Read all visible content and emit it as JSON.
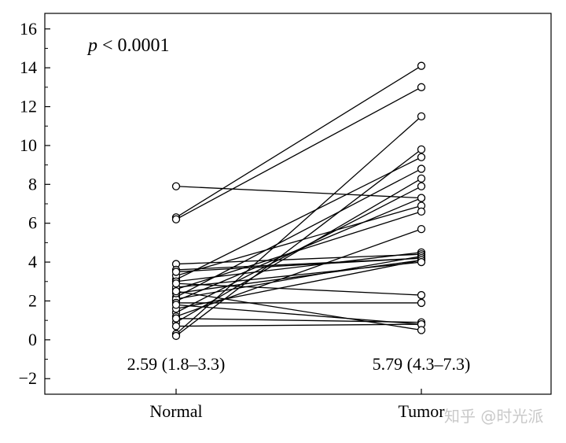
{
  "chart_data": {
    "type": "line",
    "title": "",
    "xlabel": "",
    "ylabel": "",
    "categories": [
      "Normal",
      "Tumor"
    ],
    "ylim": [
      -2.8,
      16.8
    ],
    "yticks": [
      -2,
      0,
      2,
      4,
      6,
      8,
      10,
      12,
      14,
      16
    ],
    "annotation": {
      "italic": "p",
      "rest": " < 0.0001"
    },
    "summaries": [
      {
        "category": "Normal",
        "text": "2.59 (1.8–3.3)"
      },
      {
        "category": "Tumor",
        "text": "5.79 (4.3–7.3)"
      }
    ],
    "grid": false,
    "legend": "none",
    "pairs": [
      [
        6.3,
        14.1
      ],
      [
        6.2,
        13.0
      ],
      [
        7.9,
        7.3
      ],
      [
        0.3,
        11.5
      ],
      [
        0.2,
        9.8
      ],
      [
        3.1,
        9.4
      ],
      [
        2.2,
        8.8
      ],
      [
        0.9,
        8.3
      ],
      [
        1.4,
        7.9
      ],
      [
        2.0,
        7.3
      ],
      [
        3.3,
        6.9
      ],
      [
        2.6,
        6.6
      ],
      [
        1.2,
        5.7
      ],
      [
        3.0,
        4.5
      ],
      [
        3.9,
        4.4
      ],
      [
        2.1,
        4.3
      ],
      [
        3.6,
        4.2
      ],
      [
        3.5,
        4.2
      ],
      [
        1.6,
        4.1
      ],
      [
        2.4,
        4.1
      ],
      [
        2.7,
        4.0
      ],
      [
        2.9,
        2.3
      ],
      [
        1.9,
        1.9
      ],
      [
        1.1,
        0.9
      ],
      [
        0.7,
        0.8
      ],
      [
        1.8,
        0.8
      ],
      [
        2.5,
        0.5
      ]
    ]
  },
  "watermark": "知乎 @时光派"
}
